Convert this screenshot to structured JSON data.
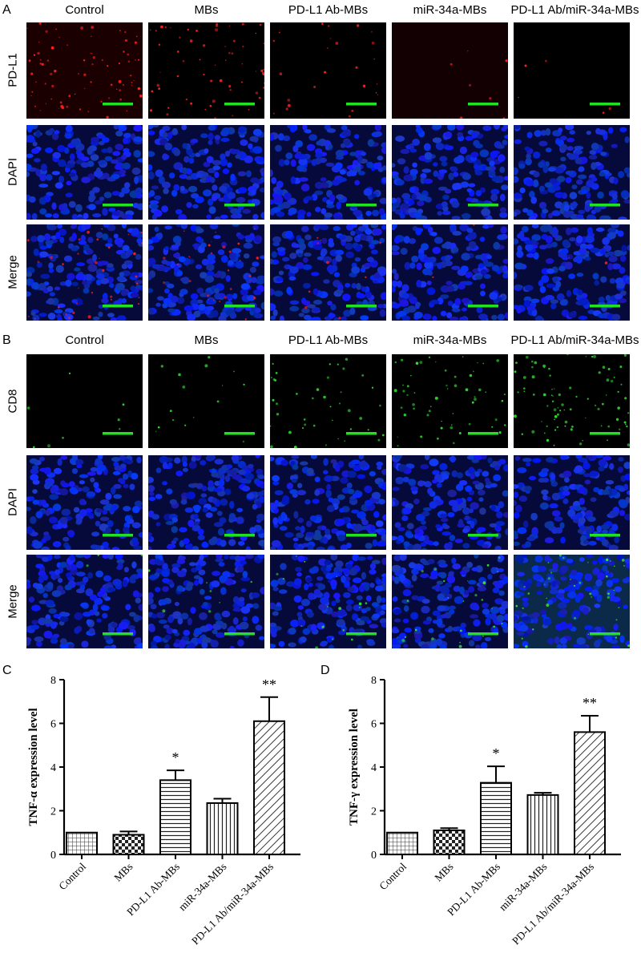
{
  "figure": {
    "panel_A": {
      "letter": "A",
      "columns": [
        "Control",
        "MBs",
        "PD-L1 Ab-MBs",
        "miR-34a-MBs",
        "PD-L1 Ab/miR-34a-MBs"
      ],
      "rows": [
        "PD-L1",
        "DAPI",
        "Merge"
      ],
      "signal_color": "#ff2020",
      "signal_levels": [
        0.55,
        0.45,
        0.18,
        0.05,
        0.04
      ]
    },
    "panel_B": {
      "letter": "B",
      "columns": [
        "Control",
        "MBs",
        "PD-L1 Ab-MBs",
        "miR-34a-MBs",
        "PD-L1 Ab/miR-34a-MBs"
      ],
      "rows": [
        "CD8",
        "DAPI",
        "Merge"
      ],
      "signal_color": "#30e030",
      "signal_levels": [
        0.06,
        0.12,
        0.3,
        0.4,
        0.6
      ]
    },
    "scale_bar_color": "#22e022",
    "nuclei_color": "#1a2bff"
  },
  "chart_data": [
    {
      "type": "bar",
      "panel": "C",
      "ylabel": "TNF-α expression level",
      "categories": [
        "Control",
        "MBs",
        "PD-L1 Ab-MBs",
        "miR-34a-MBs",
        "PD-L1 Ab/miR-34a-MBs"
      ],
      "values": [
        1.0,
        0.9,
        3.4,
        2.35,
        6.1
      ],
      "errors": [
        0.0,
        0.15,
        0.45,
        0.2,
        1.1
      ],
      "annotations": [
        "",
        "",
        "*",
        "",
        "**"
      ],
      "patterns": [
        "grid",
        "checker",
        "hlines",
        "vlines",
        "diag"
      ],
      "ylim": [
        0,
        8
      ],
      "yticks": [
        0,
        2,
        4,
        6,
        8
      ]
    },
    {
      "type": "bar",
      "panel": "D",
      "ylabel": "TNF-γ expression level",
      "categories": [
        "Control",
        "MBs",
        "PD-L1 Ab-MBs",
        "miR-34a-MBs",
        "PD-L1 Ab/miR-34a-MBs"
      ],
      "values": [
        1.0,
        1.1,
        3.28,
        2.72,
        5.6
      ],
      "errors": [
        0.0,
        0.1,
        0.75,
        0.1,
        0.75
      ],
      "annotations": [
        "",
        "",
        "*",
        "",
        "**"
      ],
      "patterns": [
        "grid",
        "checker",
        "hlines",
        "vlines",
        "diag"
      ],
      "ylim": [
        0,
        8
      ],
      "yticks": [
        0,
        2,
        4,
        6,
        8
      ]
    }
  ]
}
